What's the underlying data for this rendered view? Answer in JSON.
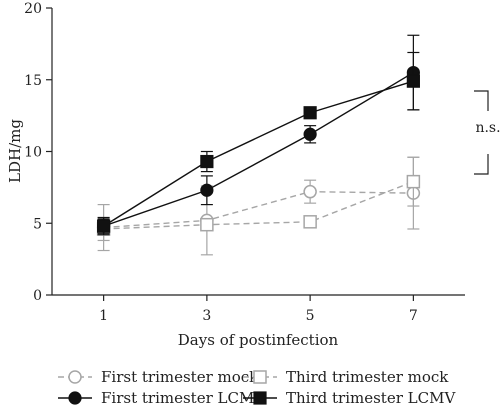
{
  "chart_data": {
    "type": "line",
    "xlabel": "Days of postinfection",
    "ylabel": "LDH/mg",
    "x": [
      1,
      3,
      5,
      7
    ],
    "xticks": [
      "1",
      "3",
      "5",
      "7"
    ],
    "xlim": [
      0,
      8
    ],
    "ylim": [
      0,
      20
    ],
    "yticks": [
      "0",
      "5",
      "10",
      "15",
      "20"
    ],
    "grid": false,
    "legend_position": "bottom",
    "annotation": "n.s.",
    "series": [
      {
        "name": "First trimester mock",
        "values": [
          4.7,
          5.2,
          7.2,
          7.1
        ],
        "errors": [
          1.6,
          2.4,
          0.8,
          2.5
        ],
        "marker": "circle-open",
        "line": "dashed",
        "color": "#a6a6a6"
      },
      {
        "name": "Third trimester mock",
        "values": [
          4.6,
          4.9,
          5.1,
          7.9
        ],
        "errors": [
          0.8,
          0.3,
          0.4,
          1.7
        ],
        "marker": "square-open",
        "line": "dashed",
        "color": "#a6a6a6"
      },
      {
        "name": "First trimester LCMV",
        "values": [
          4.8,
          7.3,
          11.2,
          15.5
        ],
        "errors": [
          0.5,
          1.0,
          0.6,
          2.6
        ],
        "marker": "circle-filled",
        "line": "solid",
        "color": "#111111"
      },
      {
        "name": "Third trimester LCMV",
        "values": [
          4.8,
          9.3,
          12.7,
          14.9
        ],
        "errors": [
          0.6,
          0.7,
          0.3,
          2.0
        ],
        "marker": "square-filled",
        "line": "solid",
        "color": "#111111"
      }
    ]
  }
}
